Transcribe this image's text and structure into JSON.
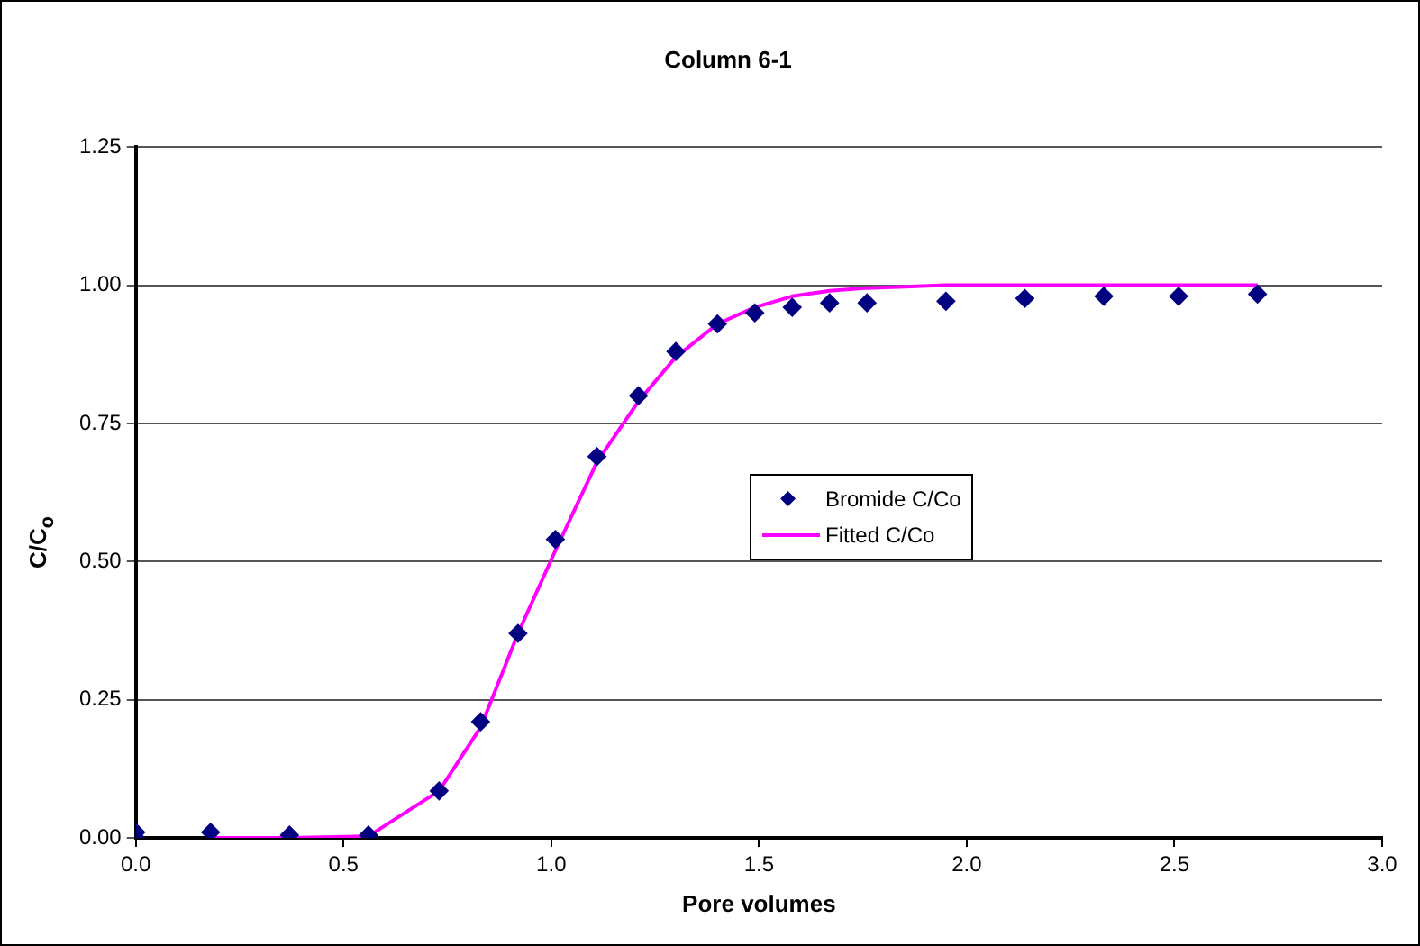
{
  "chart_data": {
    "type": "scatter",
    "title": "Column 6-1",
    "xlabel": "Pore volumes",
    "ylabel": "C/C$_{o}$",
    "xlim": [
      0,
      3
    ],
    "xticks": [
      {
        "value": 0,
        "label": "0.0"
      },
      {
        "value": 0.5,
        "label": "0.5"
      },
      {
        "value": 1,
        "label": "1.0"
      },
      {
        "value": 1.5,
        "label": "1.5"
      },
      {
        "value": 2,
        "label": "2.0"
      },
      {
        "value": 2.5,
        "label": "2.5"
      },
      {
        "value": 3,
        "label": "3.0"
      }
    ],
    "ylim": [
      0,
      1.25
    ],
    "yticks": [
      {
        "value": 0,
        "label": "0.00"
      },
      {
        "value": 0.25,
        "label": "0.25"
      },
      {
        "value": 0.5,
        "label": "0.50"
      },
      {
        "value": 0.75,
        "label": "0.75"
      },
      {
        "value": 1,
        "label": "1.00"
      },
      {
        "value": 1.25,
        "label": "1.25"
      }
    ],
    "grid": "y",
    "legend": "center",
    "series": [
      {
        "name": "Bromide C/Co",
        "type": "scatter",
        "marker": "diamond",
        "color": "#000080",
        "x": [
          0,
          0,
          0.18,
          0.37,
          0.56,
          0.73,
          0.83,
          0.92,
          1.01,
          1.11,
          1.21,
          1.3,
          1.4,
          1.49,
          1.58,
          1.67,
          1.76,
          1.95,
          2.14,
          2.33,
          2.51,
          2.7
        ],
        "values": [
          0.01,
          0,
          0.01,
          0.005,
          0.005,
          0.085,
          0.21,
          0.37,
          0.54,
          0.69,
          0.8,
          0.88,
          0.93,
          0.95,
          0.96,
          0.968,
          0.968,
          0.971,
          0.976,
          0.98,
          0.98,
          0.984
        ]
      },
      {
        "name": "Fitted C/Co",
        "type": "line",
        "marker": "none",
        "line_style": "solid",
        "color": "#ff00ff",
        "x": [
          0.18,
          0.37,
          0.56,
          0.73,
          0.83,
          0.92,
          1.01,
          1.11,
          1.21,
          1.3,
          1.4,
          1.49,
          1.58,
          1.67,
          1.76,
          1.95,
          2.14,
          2.33,
          2.51,
          2.7
        ],
        "values": [
          0,
          0,
          0.003,
          0.085,
          0.2,
          0.37,
          0.52,
          0.68,
          0.79,
          0.87,
          0.93,
          0.96,
          0.98,
          0.99,
          0.995,
          1,
          1,
          1,
          1,
          1
        ]
      }
    ]
  }
}
